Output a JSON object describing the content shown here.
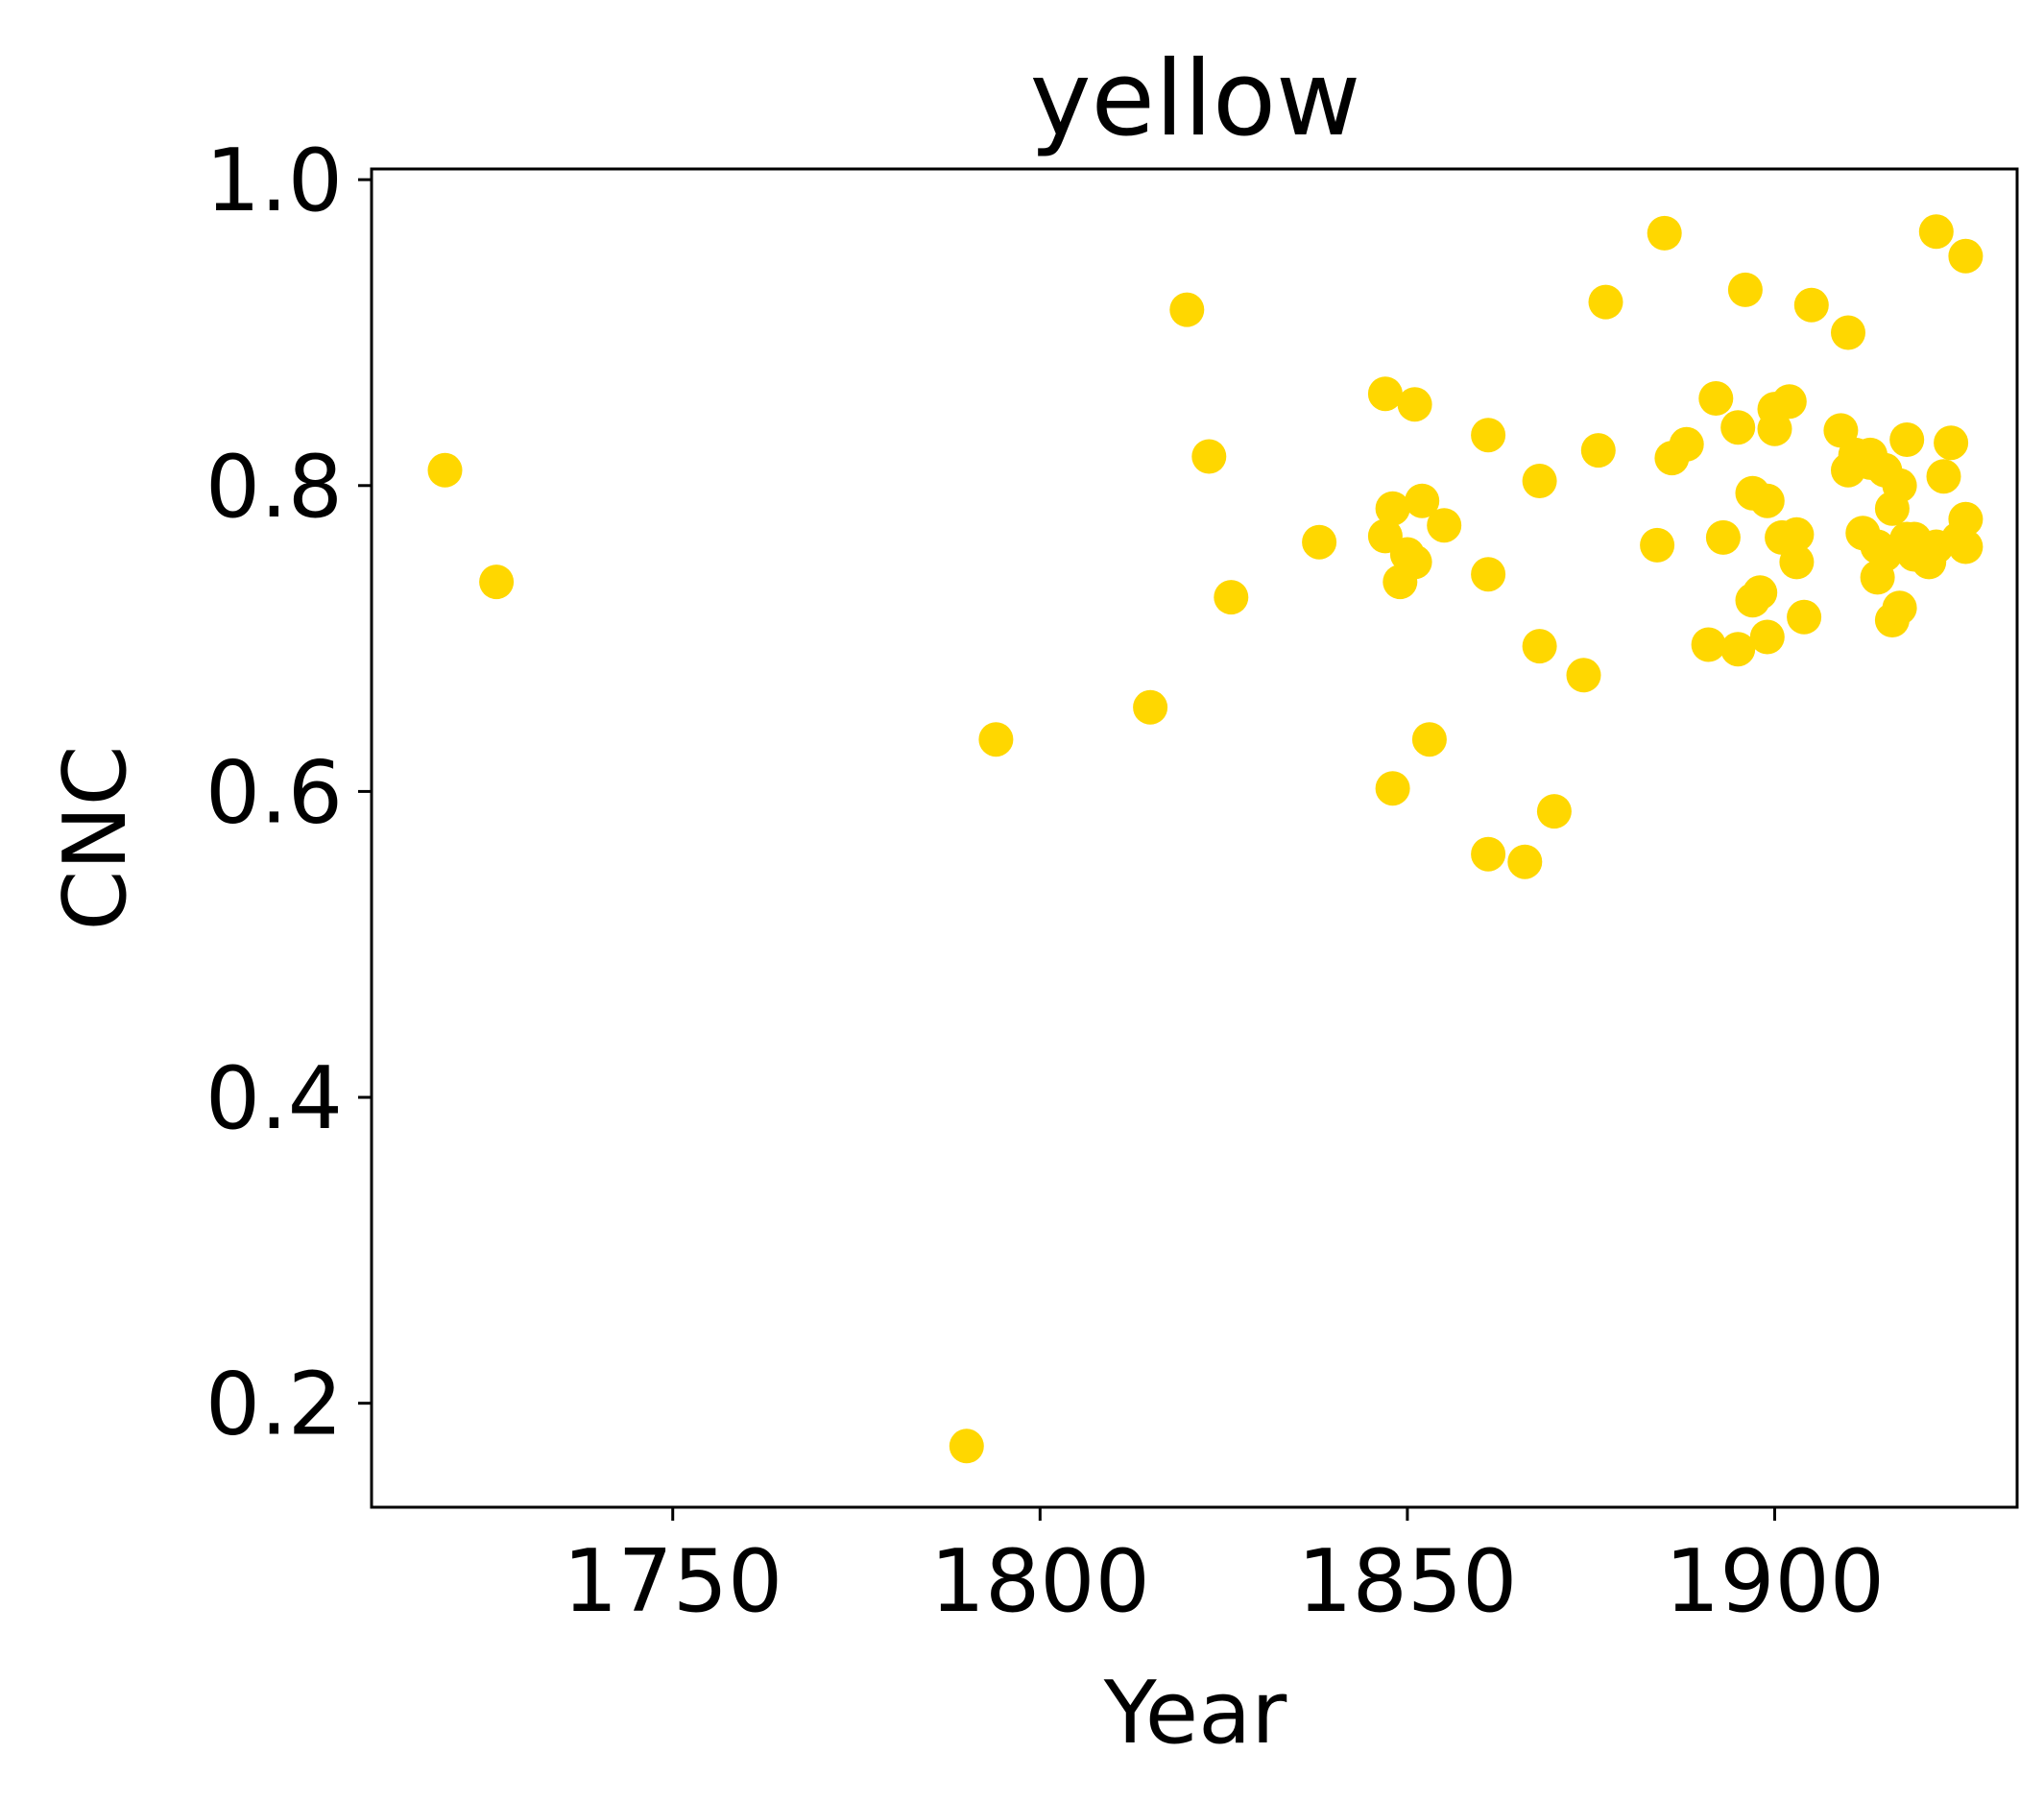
{
  "chart_data": {
    "type": "scatter",
    "title": "yellow",
    "xlabel": "Year",
    "ylabel": "CNC",
    "xlim": [
      1709,
      1933
    ],
    "ylim": [
      0.132,
      1.007
    ],
    "xticks": [
      1750,
      1800,
      1850,
      1900
    ],
    "yticks": [
      0.2,
      0.4,
      0.6,
      0.8,
      1.0
    ],
    "xtick_labels": [
      "1750",
      "1800",
      "1850",
      "1900"
    ],
    "ytick_labels": [
      "0.2",
      "0.4",
      "0.6",
      "0.8",
      "1.0"
    ],
    "grid": false,
    "marker_color": "#FFD700",
    "series": [
      {
        "x": [
          1719,
          1726,
          1790,
          1794,
          1815,
          1820,
          1823,
          1826,
          1838,
          1847,
          1847,
          1848,
          1848,
          1849,
          1850,
          1851,
          1851,
          1852,
          1853,
          1855,
          1861,
          1861,
          1861,
          1866,
          1868,
          1868,
          1870,
          1874,
          1876,
          1877,
          1884,
          1885,
          1886,
          1888,
          1891,
          1892,
          1893,
          1895,
          1895,
          1896,
          1897,
          1897,
          1898,
          1899,
          1899,
          1900,
          1900,
          1901,
          1902,
          1903,
          1903,
          1904,
          1905,
          1909,
          1910,
          1910,
          1911,
          1912,
          1913,
          1913,
          1914,
          1914,
          1915,
          1915,
          1916,
          1916,
          1917,
          1917,
          1918,
          1918,
          1919,
          1919,
          1921,
          1922,
          1922,
          1923,
          1924,
          1925,
          1926,
          1926,
          1926
        ],
        "y": [
          0.81,
          0.737,
          0.172,
          0.634,
          0.655,
          0.915,
          0.819,
          0.727,
          0.763,
          0.86,
          0.767,
          0.602,
          0.785,
          0.737,
          0.755,
          0.75,
          0.853,
          0.79,
          0.634,
          0.774,
          0.559,
          0.742,
          0.833,
          0.554,
          0.803,
          0.695,
          0.587,
          0.676,
          0.823,
          0.92,
          0.761,
          0.965,
          0.818,
          0.827,
          0.696,
          0.857,
          0.766,
          0.838,
          0.693,
          0.928,
          0.725,
          0.795,
          0.73,
          0.79,
          0.701,
          0.837,
          0.85,
          0.766,
          0.855,
          0.75,
          0.768,
          0.714,
          0.918,
          0.836,
          0.9,
          0.81,
          0.82,
          0.769,
          0.82,
          0.815,
          0.74,
          0.76,
          0.81,
          0.755,
          0.712,
          0.785,
          0.72,
          0.8,
          0.83,
          0.765,
          0.755,
          0.765,
          0.75,
          0.76,
          0.966,
          0.806,
          0.828,
          0.765,
          0.95,
          0.76,
          0.778
        ]
      }
    ]
  }
}
